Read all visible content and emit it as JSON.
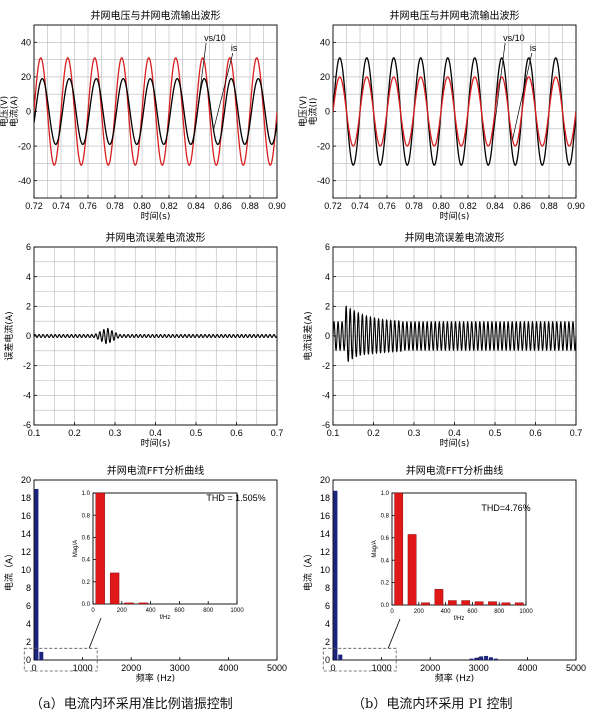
{
  "captions": {
    "left": "（a）电流内环采用准比例谐振控制",
    "right": "（b）电流内环采用 PI 控制"
  },
  "colors": {
    "axis": "#000000",
    "grid": "#b8b8b8",
    "red": "#d81e1e",
    "black": "#000000",
    "bar_navy": "#1a237e",
    "bar_red": "#e01818"
  },
  "chart_data": [
    {
      "id": "a-wave",
      "type": "line",
      "title": "并网电压与并网电流输出波形",
      "xlabel": "时间(s)",
      "ylabel": "电压(V)\n电流(A)",
      "xlim": [
        0.72,
        0.9
      ],
      "ylim": [
        -50,
        50
      ],
      "xticks": [
        "0.72",
        "0.74",
        "0.76",
        "0.78",
        "0.80",
        "0.82",
        "0.84",
        "0.86",
        "0.88",
        "0.90"
      ],
      "yticks": [
        "-40",
        "-20",
        "0",
        "20",
        "40"
      ],
      "grid": true,
      "series": [
        {
          "name": "vs/10",
          "color": "#d81e1e",
          "amplitude": 31,
          "frequency_hz": 50,
          "phase_deg": 0
        },
        {
          "name": "is",
          "color": "#000000",
          "amplitude": 19,
          "frequency_hz": 50,
          "phase_deg": -20
        }
      ]
    },
    {
      "id": "b-wave",
      "type": "line",
      "title": "并网电压与并网电流输出波形",
      "xlabel": "时间(s)",
      "ylabel": "电压(V)\n电流(I)",
      "xlim": [
        0.72,
        0.9
      ],
      "ylim": [
        -50,
        50
      ],
      "xticks": [
        "0.72",
        "0.74",
        "0.76",
        "0.78",
        "0.80",
        "0.82",
        "0.84",
        "0.86",
        "0.88",
        "0.90"
      ],
      "yticks": [
        "-40",
        "-20",
        "0",
        "20",
        "40"
      ],
      "grid": true,
      "series": [
        {
          "name": "vs/10",
          "color": "#000000",
          "amplitude": 31,
          "frequency_hz": 50,
          "phase_deg": 0
        },
        {
          "name": "is",
          "color": "#d81e1e",
          "amplitude": 20,
          "frequency_hz": 50,
          "phase_deg": 0
        }
      ]
    },
    {
      "id": "a-err",
      "type": "line",
      "title": "并网电流误差电流波形",
      "xlabel": "时间(s)",
      "ylabel": "误差电流(A)",
      "xlim": [
        0.1,
        0.7
      ],
      "ylim": [
        -6,
        6
      ],
      "xticks": [
        "0.1",
        "0.2",
        "0.3",
        "0.4",
        "0.5",
        "0.6",
        "0.7"
      ],
      "yticks": [
        "-6",
        "-4",
        "-2",
        "0",
        "2",
        "4",
        "6"
      ],
      "grid": true,
      "series": [
        {
          "name": "",
          "color": "#000000",
          "amplitude": 0.1,
          "frequency_hz": 100,
          "spike_t": 0.28,
          "spike_amp": 0.45
        }
      ]
    },
    {
      "id": "b-err",
      "type": "line",
      "title": "并网电流误差电流波形",
      "xlabel": "时间(s)",
      "ylabel": "电流误差(A)",
      "xlim": [
        0.1,
        0.7
      ],
      "ylim": [
        -6,
        6
      ],
      "xticks": [
        "0.1",
        "0.2",
        "0.3",
        "0.4",
        "0.5",
        "0.6",
        "0.7"
      ],
      "yticks": [
        "-6",
        "-4",
        "-2",
        "0",
        "2",
        "4",
        "6"
      ],
      "grid": true,
      "series": [
        {
          "name": "",
          "color": "#000000",
          "amplitude": 0.95,
          "frequency_hz": 100,
          "transient_start": 0.13,
          "transient_end": 0.27,
          "transient_amp": 2.1
        }
      ]
    },
    {
      "id": "a-fft",
      "type": "bar",
      "title": "并网电流FFT分析曲线",
      "xlabel": "频率 (Hz)",
      "ylabel": "电流（A）",
      "xlim": [
        0,
        5000
      ],
      "ylim": [
        0,
        20
      ],
      "xticks": [
        "0",
        "1000",
        "2000",
        "3000",
        "4000",
        "5000"
      ],
      "yticks": [
        "0",
        "2",
        "4",
        "6",
        "8",
        "10",
        "12",
        "14",
        "16",
        "18",
        "20"
      ],
      "bars": [
        {
          "x": 50,
          "y": 19
        },
        {
          "x": 150,
          "y": 0.9
        }
      ],
      "annotation": "THD = 1.505%",
      "inset": {
        "xlabel": "f/Hz",
        "ylabel": "Mag/A",
        "xlim": [
          0,
          1000
        ],
        "ylim": [
          0,
          1.0
        ],
        "xticks": [
          "0",
          "200",
          "400",
          "600",
          "800",
          "1000"
        ],
        "yticks": [
          "0.0",
          "0.2",
          "0.4",
          "0.6",
          "0.8",
          "1.0"
        ],
        "bars": [
          {
            "x": 50,
            "y": 1.0
          },
          {
            "x": 150,
            "y": 0.28
          },
          {
            "x": 250,
            "y": 0.01
          },
          {
            "x": 350,
            "y": 0.01
          }
        ]
      }
    },
    {
      "id": "b-fft",
      "type": "bar",
      "title": "并网电流FFT分析曲线",
      "xlabel": "频率 (Hz)",
      "ylabel": "电流（A）",
      "xlim": [
        0,
        5000
      ],
      "ylim": [
        0,
        20
      ],
      "xticks": [
        "0",
        "1000",
        "2000",
        "3000",
        "4000",
        "5000"
      ],
      "yticks": [
        "0",
        "2",
        "4",
        "6",
        "8",
        "10",
        "12",
        "14",
        "16",
        "18",
        "20"
      ],
      "bars": [
        {
          "x": 50,
          "y": 18.8
        },
        {
          "x": 150,
          "y": 0.6
        },
        {
          "x": 2850,
          "y": 0.15
        },
        {
          "x": 2950,
          "y": 0.25
        },
        {
          "x": 3050,
          "y": 0.4
        },
        {
          "x": 3150,
          "y": 0.45
        },
        {
          "x": 3250,
          "y": 0.3
        },
        {
          "x": 3350,
          "y": 0.15
        }
      ],
      "annotation": "THD=4.76%",
      "inset": {
        "xlabel": "f/Hz",
        "ylabel": "Mag/A",
        "xlim": [
          0,
          1000
        ],
        "ylim": [
          0,
          1.0
        ],
        "xticks": [
          "0",
          "200",
          "400",
          "600",
          "800",
          "1000"
        ],
        "yticks": [
          "0.0",
          "0.2",
          "0.4",
          "0.6",
          "0.8",
          "1.0"
        ],
        "bars": [
          {
            "x": 50,
            "y": 1.0
          },
          {
            "x": 150,
            "y": 0.63
          },
          {
            "x": 250,
            "y": 0.02
          },
          {
            "x": 350,
            "y": 0.14
          },
          {
            "x": 450,
            "y": 0.04
          },
          {
            "x": 550,
            "y": 0.04
          },
          {
            "x": 650,
            "y": 0.03
          },
          {
            "x": 750,
            "y": 0.03
          },
          {
            "x": 850,
            "y": 0.02
          },
          {
            "x": 950,
            "y": 0.02
          }
        ]
      }
    }
  ]
}
